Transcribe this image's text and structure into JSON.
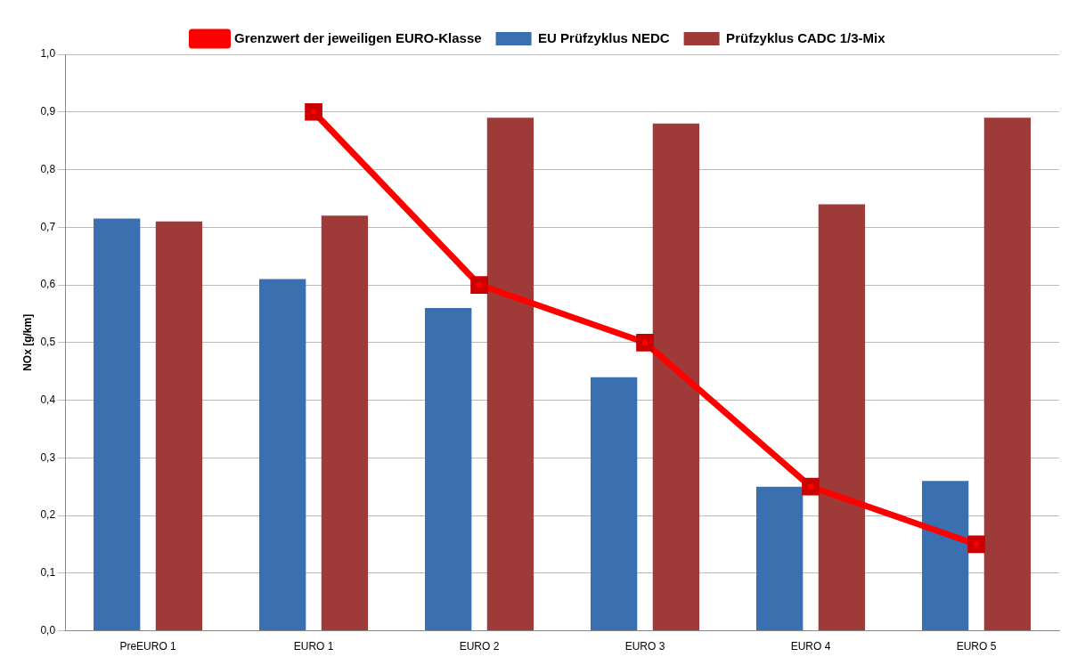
{
  "chart_data": {
    "type": "bar",
    "ylabel": "NOx [g/km]",
    "categories": [
      "PreEURO 1",
      "EURO 1",
      "EURO 2",
      "EURO 3",
      "EURO 4",
      "EURO 5"
    ],
    "series": [
      {
        "name": "EU Prüfzyklus NEDC",
        "color": "#3a6fb0",
        "values": [
          0.715,
          0.61,
          0.56,
          0.44,
          0.25,
          0.26
        ]
      },
      {
        "name": "Prüfzyklus CADC 1/3-Mix",
        "color": "#9e3a38",
        "values": [
          0.71,
          0.72,
          0.89,
          0.88,
          0.74,
          0.89
        ]
      },
      {
        "name": "Grenzwert der jeweiligen EURO-Klasse",
        "type": "line",
        "color": "#ff0000",
        "values": [
          null,
          0.9,
          0.6,
          0.5,
          0.25,
          0.15
        ]
      }
    ],
    "ylim": [
      0,
      1
    ],
    "yticks": [
      {
        "value": 0,
        "label": "0,0"
      },
      {
        "value": 0.1,
        "label": "0,1"
      },
      {
        "value": 0.2,
        "label": "0,2"
      },
      {
        "value": 0.3,
        "label": "0,3"
      },
      {
        "value": 0.4,
        "label": "0,4"
      },
      {
        "value": 0.5,
        "label": "0,5"
      },
      {
        "value": 0.6,
        "label": "0,6"
      },
      {
        "value": 0.7,
        "label": "0,7"
      },
      {
        "value": 0.8,
        "label": "0,8"
      },
      {
        "value": 0.9,
        "label": "0,9"
      },
      {
        "value": 1,
        "label": "1,0"
      }
    ],
    "grid": "y",
    "legend": "top",
    "marker": "square",
    "line_style": "solid"
  }
}
